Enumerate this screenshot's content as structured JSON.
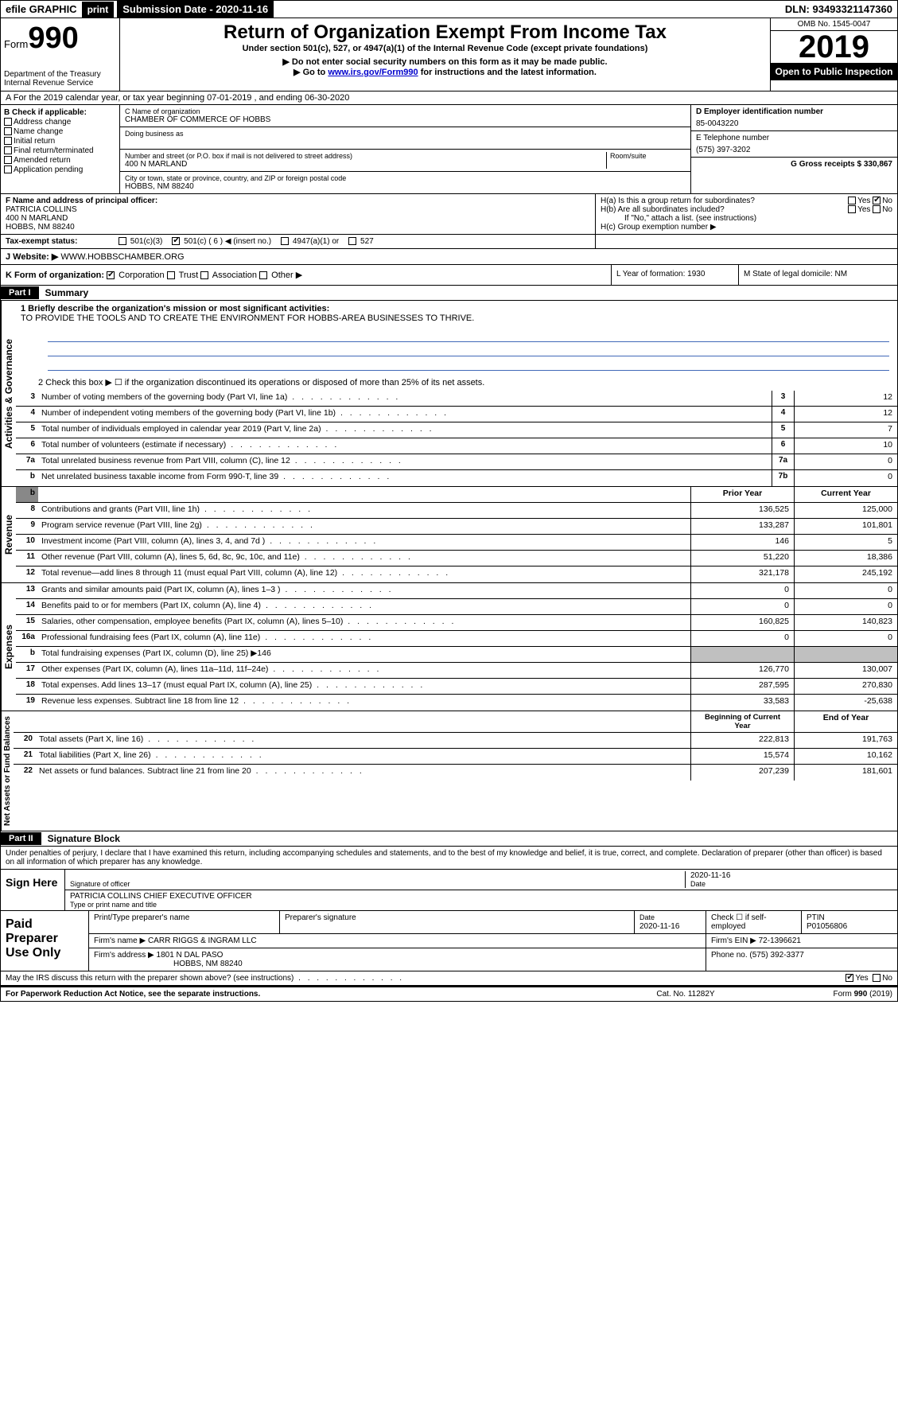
{
  "topbar": {
    "efile": "efile GRAPHIC",
    "print": "print",
    "submission_label": "Submission Date - 2020-11-16",
    "dln": "DLN: 93493321147360"
  },
  "header": {
    "form_prefix": "Form",
    "form_number": "990",
    "dept": "Department of the Treasury",
    "irs": "Internal Revenue Service",
    "title": "Return of Organization Exempt From Income Tax",
    "subtitle": "Under section 501(c), 527, or 4947(a)(1) of the Internal Revenue Code (except private foundations)",
    "note1": "▶ Do not enter social security numbers on this form as it may be made public.",
    "note2_pre": "▶ Go to ",
    "note2_link": "www.irs.gov/Form990",
    "note2_post": " for instructions and the latest information.",
    "omb": "OMB No. 1545-0047",
    "year": "2019",
    "open": "Open to Public Inspection"
  },
  "row_a": "A For the 2019 calendar year, or tax year beginning 07-01-2019    , and ending 06-30-2020",
  "section_b": {
    "label": "B Check if applicable:",
    "opts": [
      "Address change",
      "Name change",
      "Initial return",
      "Final return/terminated",
      "Amended return",
      "Application pending"
    ]
  },
  "section_c": {
    "name_label": "C Name of organization",
    "name": "CHAMBER OF COMMERCE OF HOBBS",
    "dba_label": "Doing business as",
    "addr_label": "Number and street (or P.O. box if mail is not delivered to street address)",
    "room_label": "Room/suite",
    "addr": "400 N MARLAND",
    "city_label": "City or town, state or province, country, and ZIP or foreign postal code",
    "city": "HOBBS, NM  88240"
  },
  "section_d": {
    "ein_label": "D Employer identification number",
    "ein": "85-0043220",
    "phone_label": "E Telephone number",
    "phone": "(575) 397-3202",
    "gross_label": "G Gross receipts $ 330,867"
  },
  "section_f": {
    "label": "F  Name and address of principal officer:",
    "name": "PATRICIA COLLINS",
    "addr": "400 N MARLAND",
    "city": "HOBBS, NM  88240"
  },
  "section_h": {
    "ha": "H(a)  Is this a group return for subordinates?",
    "hb": "H(b)  Are all subordinates included?",
    "hb_note": "If \"No,\" attach a list. (see instructions)",
    "hc": "H(c)  Group exemption number ▶"
  },
  "row_i": {
    "label": "Tax-exempt status:",
    "opt1": "501(c)(3)",
    "opt2": "501(c) ( 6 ) ◀ (insert no.)",
    "opt3": "4947(a)(1) or",
    "opt4": "527"
  },
  "row_j": {
    "label": "J   Website: ▶",
    "value": "WWW.HOBBSCHAMBER.ORG"
  },
  "row_k": {
    "label": "K Form of organization:",
    "opts": [
      "Corporation",
      "Trust",
      "Association",
      "Other ▶"
    ]
  },
  "row_l": "L Year of formation: 1930",
  "row_m": "M State of legal domicile: NM",
  "part1": {
    "header": "Part I",
    "title": "Summary",
    "line1_label": "1  Briefly describe the organization's mission or most significant activities:",
    "mission": "TO PROVIDE THE TOOLS AND TO CREATE THE ENVIRONMENT FOR HOBBS-AREA BUSINESSES TO THRIVE.",
    "line2": "2   Check this box ▶ ☐  if the organization discontinued its operations or disposed of more than 25% of its net assets.",
    "lines_3_7": [
      {
        "n": "3",
        "t": "Number of voting members of the governing body (Part VI, line 1a)",
        "box": "3",
        "v": "12"
      },
      {
        "n": "4",
        "t": "Number of independent voting members of the governing body (Part VI, line 1b)",
        "box": "4",
        "v": "12"
      },
      {
        "n": "5",
        "t": "Total number of individuals employed in calendar year 2019 (Part V, line 2a)",
        "box": "5",
        "v": "7"
      },
      {
        "n": "6",
        "t": "Total number of volunteers (estimate if necessary)",
        "box": "6",
        "v": "10"
      },
      {
        "n": "7a",
        "t": "Total unrelated business revenue from Part VIII, column (C), line 12",
        "box": "7a",
        "v": "0"
      },
      {
        "n": "b",
        "t": "Net unrelated business taxable income from Form 990-T, line 39",
        "box": "7b",
        "v": "0"
      }
    ],
    "col_headers": {
      "prior": "Prior Year",
      "current": "Current Year"
    },
    "revenue": [
      {
        "n": "8",
        "t": "Contributions and grants (Part VIII, line 1h)",
        "p": "136,525",
        "c": "125,000"
      },
      {
        "n": "9",
        "t": "Program service revenue (Part VIII, line 2g)",
        "p": "133,287",
        "c": "101,801"
      },
      {
        "n": "10",
        "t": "Investment income (Part VIII, column (A), lines 3, 4, and 7d )",
        "p": "146",
        "c": "5"
      },
      {
        "n": "11",
        "t": "Other revenue (Part VIII, column (A), lines 5, 6d, 8c, 9c, 10c, and 11e)",
        "p": "51,220",
        "c": "18,386"
      },
      {
        "n": "12",
        "t": "Total revenue—add lines 8 through 11 (must equal Part VIII, column (A), line 12)",
        "p": "321,178",
        "c": "245,192"
      }
    ],
    "expenses": [
      {
        "n": "13",
        "t": "Grants and similar amounts paid (Part IX, column (A), lines 1–3 )",
        "p": "0",
        "c": "0"
      },
      {
        "n": "14",
        "t": "Benefits paid to or for members (Part IX, column (A), line 4)",
        "p": "0",
        "c": "0"
      },
      {
        "n": "15",
        "t": "Salaries, other compensation, employee benefits (Part IX, column (A), lines 5–10)",
        "p": "160,825",
        "c": "140,823"
      },
      {
        "n": "16a",
        "t": "Professional fundraising fees (Part IX, column (A), line 11e)",
        "p": "0",
        "c": "0"
      },
      {
        "n": "b",
        "t": "Total fundraising expenses (Part IX, column (D), line 25) ▶146",
        "p": "",
        "c": "",
        "shaded": true
      },
      {
        "n": "17",
        "t": "Other expenses (Part IX, column (A), lines 11a–11d, 11f–24e)",
        "p": "126,770",
        "c": "130,007"
      },
      {
        "n": "18",
        "t": "Total expenses. Add lines 13–17 (must equal Part IX, column (A), line 25)",
        "p": "287,595",
        "c": "270,830"
      },
      {
        "n": "19",
        "t": "Revenue less expenses. Subtract line 18 from line 12",
        "p": "33,583",
        "c": "-25,638"
      }
    ],
    "net_headers": {
      "begin": "Beginning of Current Year",
      "end": "End of Year"
    },
    "net": [
      {
        "n": "20",
        "t": "Total assets (Part X, line 16)",
        "p": "222,813",
        "c": "191,763"
      },
      {
        "n": "21",
        "t": "Total liabilities (Part X, line 26)",
        "p": "15,574",
        "c": "10,162"
      },
      {
        "n": "22",
        "t": "Net assets or fund balances. Subtract line 21 from line 20",
        "p": "207,239",
        "c": "181,601"
      }
    ],
    "vlabels": {
      "gov": "Activities & Governance",
      "rev": "Revenue",
      "exp": "Expenses",
      "net": "Net Assets or Fund Balances"
    }
  },
  "part2": {
    "header": "Part II",
    "title": "Signature Block",
    "perjury": "Under penalties of perjury, I declare that I have examined this return, including accompanying schedules and statements, and to the best of my knowledge and belief, it is true, correct, and complete. Declaration of preparer (other than officer) is based on all information of which preparer has any knowledge.",
    "sign_here": "Sign Here",
    "sig_officer": "Signature of officer",
    "sig_date": "2020-11-16",
    "date_label": "Date",
    "officer_name": "PATRICIA COLLINS  CHIEF EXECUTIVE OFFICER",
    "type_label": "Type or print name and title",
    "paid_label": "Paid Preparer Use Only",
    "prep_name_label": "Print/Type preparer's name",
    "prep_sig_label": "Preparer's signature",
    "prep_date": "2020-11-16",
    "check_self": "Check ☐ if self-employed",
    "ptin_label": "PTIN",
    "ptin": "P01056806",
    "firm_name_label": "Firm's name    ▶",
    "firm_name": "CARR RIGGS & INGRAM LLC",
    "firm_ein_label": "Firm's EIN ▶",
    "firm_ein": "72-1396621",
    "firm_addr_label": "Firm's address ▶",
    "firm_addr1": "1801 N DAL PASO",
    "firm_addr2": "HOBBS, NM  88240",
    "firm_phone_label": "Phone no.",
    "firm_phone": "(575) 392-3377",
    "discuss": "May the IRS discuss this return with the preparer shown above? (see instructions)",
    "paperwork": "For Paperwork Reduction Act Notice, see the separate instructions.",
    "cat": "Cat. No. 11282Y",
    "form_footer": "Form 990 (2019)"
  }
}
